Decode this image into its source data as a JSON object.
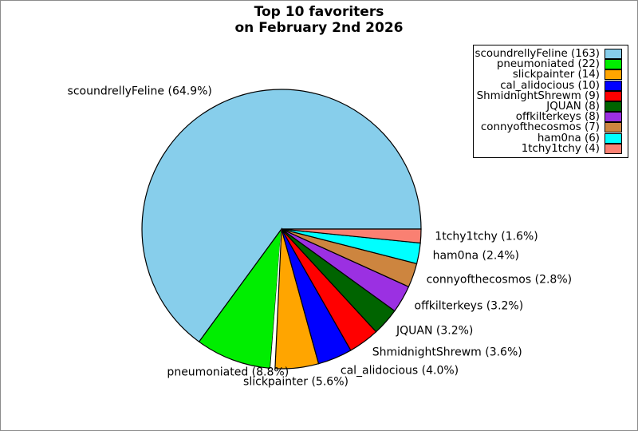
{
  "title": {
    "line1": "Top 10 favoriters",
    "line2": "on February 2nd 2026"
  },
  "chart_data": {
    "type": "pie",
    "title": "Top 10 favoriters on February 2nd 2026",
    "legend_position": "upper right",
    "start_angle_deg": 0,
    "direction": "counterclockwise",
    "slices": [
      {
        "name": "scoundrellyFeline",
        "count": 163,
        "pct": "64.9",
        "color": "#87CEEB"
      },
      {
        "name": "pneumoniated",
        "count": 22,
        "pct": "8.8",
        "color": "#00EE00"
      },
      {
        "name": "slickpainter",
        "count": 14,
        "pct": "5.6",
        "color": "#FFA500"
      },
      {
        "name": "cal_alidocious",
        "count": 10,
        "pct": "4.0",
        "color": "#0000FF"
      },
      {
        "name": "ShmidnightShrewm",
        "count": 9,
        "pct": "3.6",
        "color": "#FF0000"
      },
      {
        "name": "JQUAN",
        "count": 8,
        "pct": "3.2",
        "color": "#006400"
      },
      {
        "name": "offkilterkeys",
        "count": 8,
        "pct": "3.2",
        "color": "#9B30E2"
      },
      {
        "name": "connyofthecosmos",
        "count": 7,
        "pct": "2.8",
        "color": "#CD853F"
      },
      {
        "name": "ham0na",
        "count": 6,
        "pct": "2.4",
        "color": "#00FFFF"
      },
      {
        "name": "1tchy1tchy",
        "count": 4,
        "pct": "1.6",
        "color": "#FA8072"
      }
    ]
  }
}
